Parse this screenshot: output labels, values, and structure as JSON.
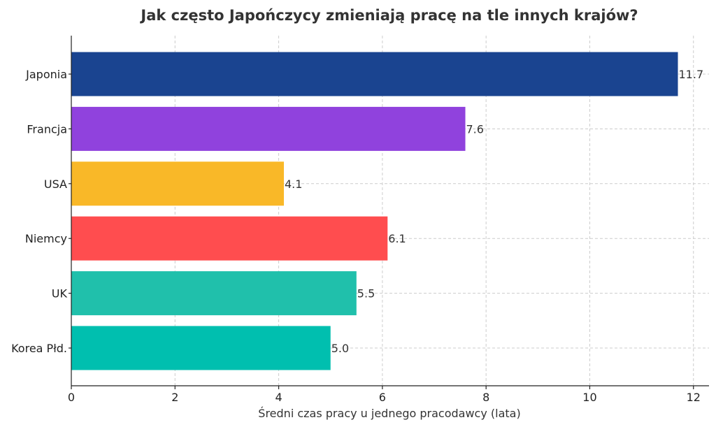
{
  "chart_data": {
    "type": "bar",
    "orientation": "horizontal",
    "title": "Jak często Japończycy zmieniają pracę na tle innych krajów?",
    "xlabel": "Średni czas pracy u jednego pracodawcy (lata)",
    "ylabel": "",
    "categories": [
      "Japonia",
      "Francja",
      "USA",
      "Niemcy",
      "UK",
      "Korea Płd."
    ],
    "values": [
      11.7,
      7.6,
      4.1,
      6.1,
      5.5,
      5.0
    ],
    "value_labels": [
      "11.7",
      "7.6",
      "4.1",
      "6.1",
      "5.5",
      "5.0"
    ],
    "colors": [
      "#1a4490",
      "#9042dd",
      "#f9b828",
      "#ff4d4f",
      "#20c0ab",
      "#00bfaf"
    ],
    "xlim": [
      0,
      12.3
    ],
    "xticks": [
      0,
      2,
      4,
      6,
      8,
      10,
      12
    ],
    "xtick_labels": [
      "0",
      "2",
      "4",
      "6",
      "8",
      "10",
      "12"
    ],
    "grid": true,
    "legend": "none"
  }
}
